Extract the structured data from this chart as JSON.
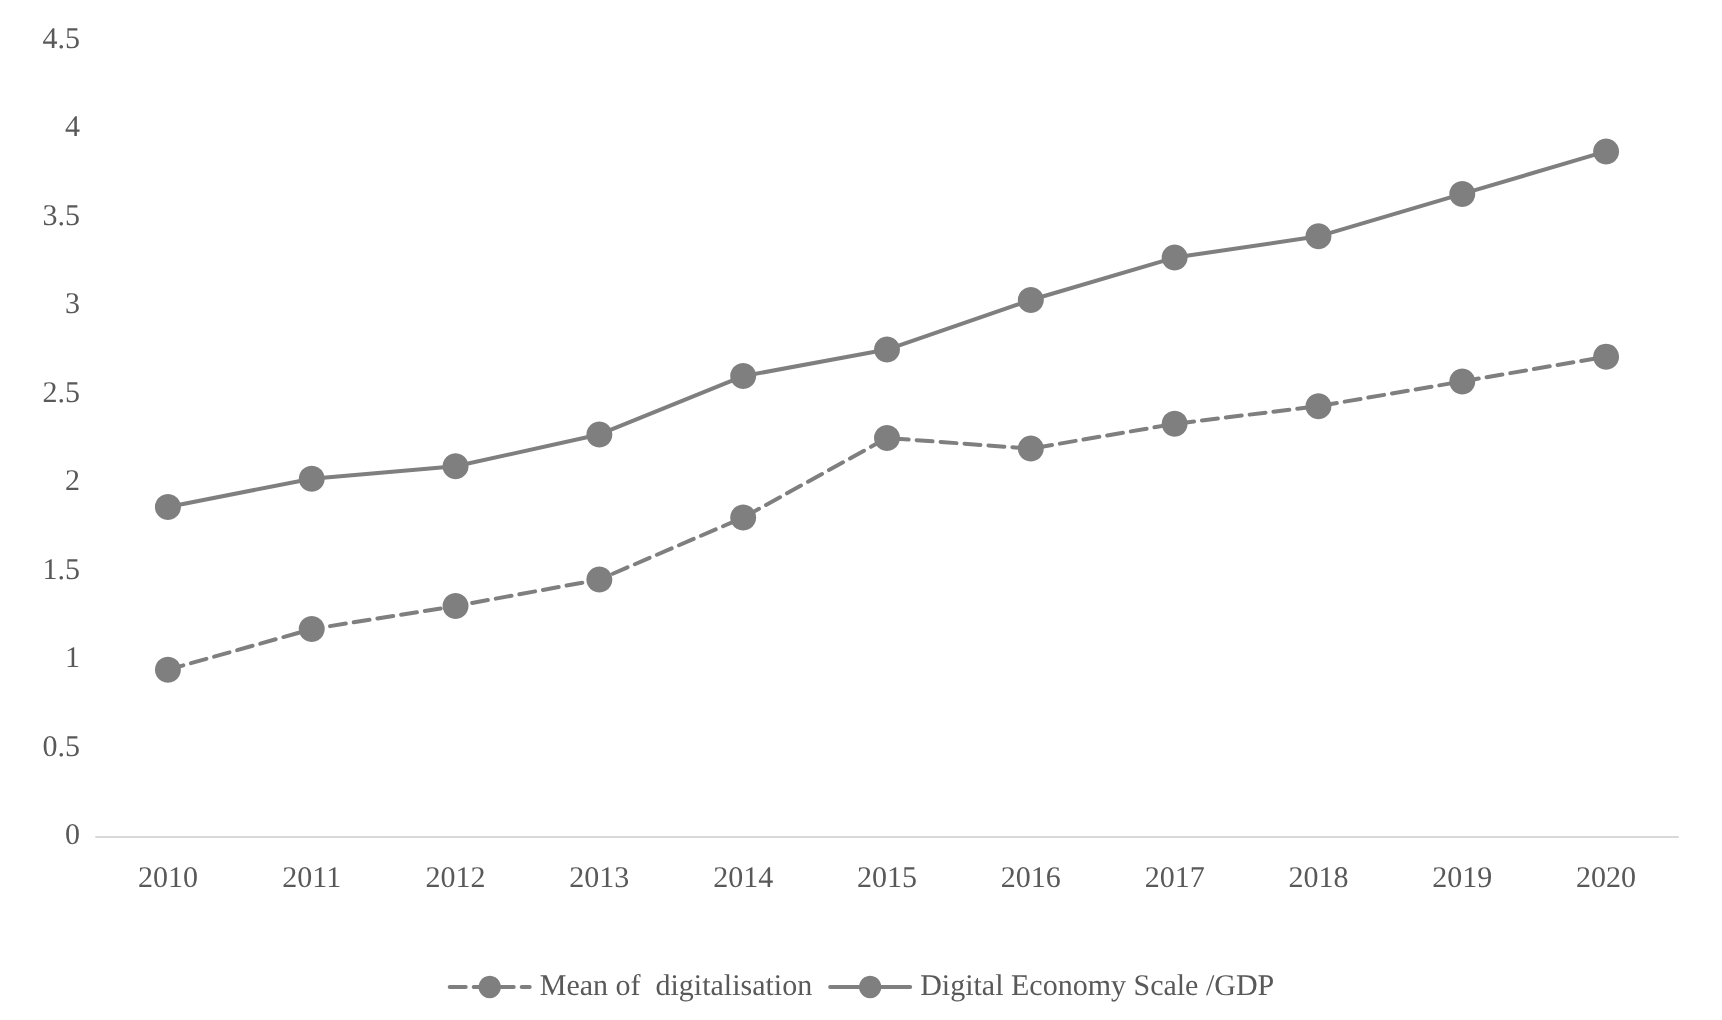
{
  "chart_data": {
    "type": "line",
    "categories": [
      "2010",
      "2011",
      "2012",
      "2013",
      "2014",
      "2015",
      "2016",
      "2017",
      "2018",
      "2019",
      "2020"
    ],
    "series": [
      {
        "name": "Mean of  digitalisation",
        "color": "#7f7f7f",
        "line_style": "dashed",
        "values": [
          0.94,
          1.17,
          1.3,
          1.45,
          1.8,
          2.25,
          2.19,
          2.33,
          2.43,
          2.57,
          2.71
        ]
      },
      {
        "name": "Digital Economy Scale /GDP",
        "color": "#7f7f7f",
        "line_style": "solid",
        "values": [
          1.86,
          2.02,
          2.09,
          2.27,
          2.6,
          2.75,
          3.03,
          3.27,
          3.39,
          3.63,
          3.87
        ]
      }
    ],
    "ylim": [
      0,
      4.5
    ],
    "yticks": [
      0,
      0.5,
      1,
      1.5,
      2,
      2.5,
      3,
      3.5,
      4,
      4.5
    ],
    "grid": false,
    "legend": "bottom",
    "marker": "circle"
  }
}
